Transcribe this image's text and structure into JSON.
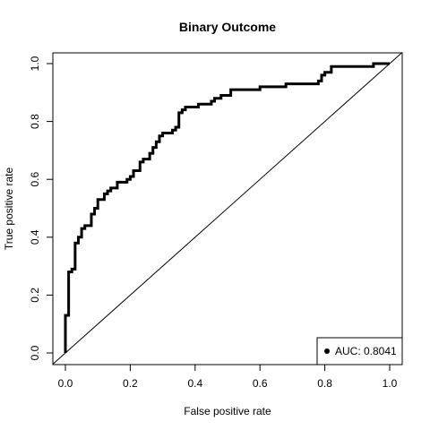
{
  "chart_data": {
    "type": "line",
    "title": "Binary Outcome",
    "xlabel": "False positive rate",
    "ylabel": "True positive rate",
    "xlim": [
      0,
      1
    ],
    "ylim": [
      0,
      1
    ],
    "xticks": [
      "0.0",
      "0.2",
      "0.4",
      "0.6",
      "0.8",
      "1.0"
    ],
    "yticks": [
      "0.0",
      "0.2",
      "0.4",
      "0.6",
      "0.8",
      "1.0"
    ],
    "grid": false,
    "legend_position": "bottom-right",
    "legend_label": "AUC: 0.8041",
    "series": [
      {
        "style": "step",
        "color": "#000000",
        "x": [
          0.0,
          0.0,
          0.01,
          0.01,
          0.02,
          0.02,
          0.03,
          0.03,
          0.04,
          0.04,
          0.05,
          0.05,
          0.06,
          0.06,
          0.08,
          0.08,
          0.09,
          0.09,
          0.1,
          0.1,
          0.12,
          0.12,
          0.13,
          0.13,
          0.14,
          0.14,
          0.16,
          0.16,
          0.19,
          0.19,
          0.2,
          0.2,
          0.21,
          0.21,
          0.23,
          0.23,
          0.24,
          0.24,
          0.26,
          0.26,
          0.27,
          0.27,
          0.28,
          0.28,
          0.29,
          0.29,
          0.3,
          0.3,
          0.31,
          0.31,
          0.33,
          0.33,
          0.34,
          0.34,
          0.35,
          0.35,
          0.36,
          0.36,
          0.37,
          0.37,
          0.38,
          0.38,
          0.41,
          0.41,
          0.43,
          0.43,
          0.45,
          0.45,
          0.46,
          0.46,
          0.48,
          0.48,
          0.51,
          0.51,
          0.58,
          0.58,
          0.6,
          0.6,
          0.68,
          0.68,
          0.78,
          0.78,
          0.79,
          0.79,
          0.8,
          0.8,
          0.82,
          0.82,
          0.95,
          0.95,
          0.98,
          0.98,
          1.0
        ],
        "y": [
          0.0,
          0.13,
          0.13,
          0.28,
          0.28,
          0.29,
          0.29,
          0.38,
          0.38,
          0.4,
          0.4,
          0.43,
          0.43,
          0.44,
          0.44,
          0.48,
          0.48,
          0.5,
          0.5,
          0.53,
          0.53,
          0.55,
          0.55,
          0.56,
          0.56,
          0.57,
          0.57,
          0.59,
          0.59,
          0.6,
          0.6,
          0.61,
          0.61,
          0.63,
          0.63,
          0.66,
          0.66,
          0.67,
          0.67,
          0.69,
          0.69,
          0.71,
          0.71,
          0.73,
          0.73,
          0.75,
          0.75,
          0.76,
          0.76,
          0.76,
          0.76,
          0.77,
          0.77,
          0.78,
          0.78,
          0.83,
          0.83,
          0.84,
          0.84,
          0.85,
          0.85,
          0.85,
          0.85,
          0.86,
          0.86,
          0.86,
          0.86,
          0.87,
          0.87,
          0.88,
          0.88,
          0.89,
          0.89,
          0.91,
          0.91,
          0.91,
          0.91,
          0.92,
          0.92,
          0.93,
          0.93,
          0.94,
          0.94,
          0.96,
          0.96,
          0.97,
          0.97,
          0.99,
          0.99,
          1.0,
          1.0,
          1.0,
          1.0
        ]
      }
    ],
    "reference_line": {
      "x": [
        0,
        1
      ],
      "y": [
        0,
        1
      ],
      "color": "#000000"
    }
  }
}
